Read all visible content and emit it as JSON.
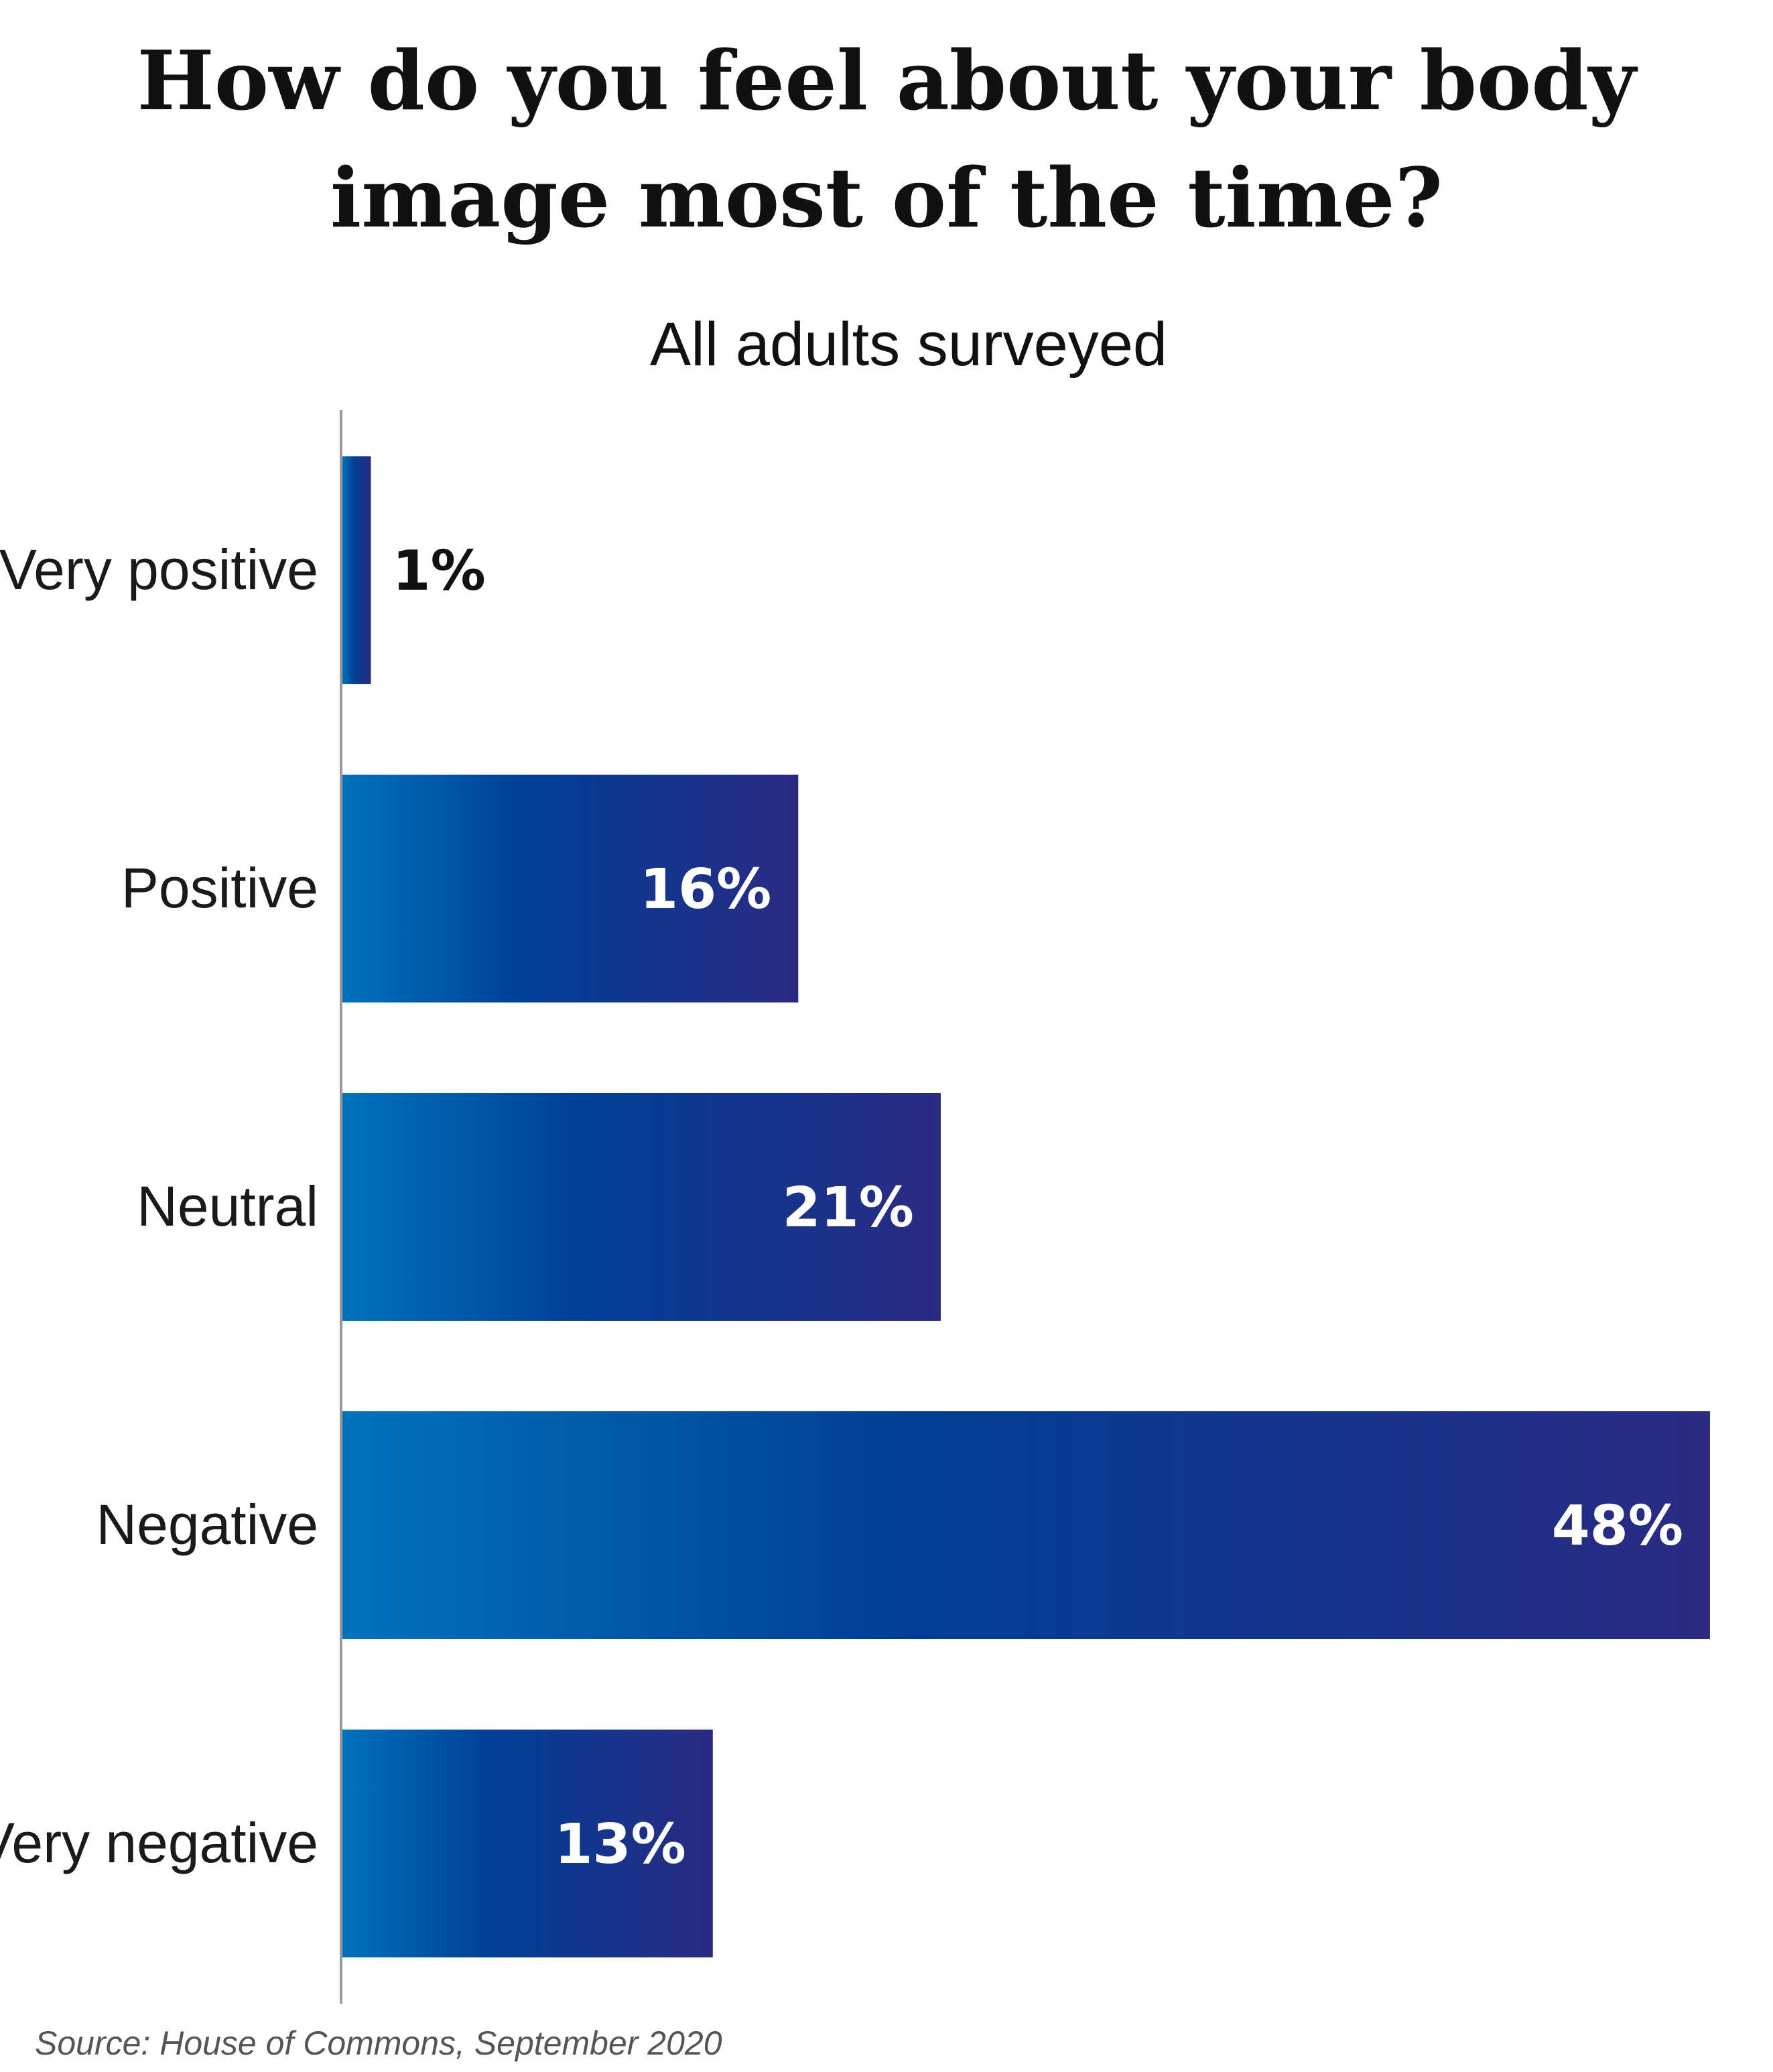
{
  "chart_data": {
    "type": "bar",
    "orientation": "horizontal",
    "title_lines": [
      "How do you feel about your body",
      "image most of the time?"
    ],
    "subtitle": "All adults surveyed",
    "categories": [
      "Very positive",
      "Positive",
      "Neutral",
      "Negative",
      "Very negative"
    ],
    "values": [
      1,
      16,
      21,
      48,
      13
    ],
    "value_labels": [
      "1%",
      "16%",
      "21%",
      "48%",
      "13%"
    ],
    "unit": "%",
    "xlim": [
      0,
      48
    ],
    "grid": false,
    "legend": "none",
    "source": "Source: House of Commons, September 2020",
    "colors": {
      "bar_start": "#0072BC",
      "bar_mid": "#003F96",
      "bar_end": "#2A2A82",
      "axis": "#999999",
      "label_inside": "#FFFFFF",
      "label_outside": "#111111"
    }
  }
}
